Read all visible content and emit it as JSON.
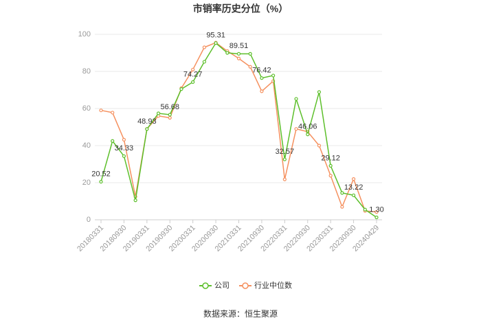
{
  "chart_data": {
    "type": "line",
    "title": "市销率历史分位（%）",
    "categories": [
      "20180331",
      null,
      "20180930",
      null,
      "20190331",
      null,
      "20190930",
      null,
      "20200331",
      null,
      "20200930",
      null,
      "20210331",
      null,
      "20210930",
      null,
      "20220331",
      null,
      "20220930",
      null,
      "20230331",
      null,
      "20230930",
      null,
      "20240429"
    ],
    "series": [
      {
        "name": "公司",
        "color": "#5cbf2a",
        "values": [
          20.52,
          42.5,
          34.33,
          10.5,
          48.93,
          57.4,
          56.68,
          70.5,
          74.27,
          85.2,
          95.31,
          90,
          89.51,
          89.5,
          76.42,
          77.8,
          32.57,
          65.2,
          46.06,
          68.9,
          29.12,
          14.5,
          13.22,
          5.5,
          1.3
        ],
        "value_labels": [
          "20.52",
          null,
          "34.33",
          null,
          "48.93",
          null,
          "56.68",
          null,
          "74.27",
          null,
          "95.31",
          null,
          "89.51",
          null,
          "76.42",
          null,
          "32.57",
          null,
          "46.06",
          null,
          "29.12",
          null,
          "13.22",
          null,
          "1.30"
        ]
      },
      {
        "name": "行业中位数",
        "color": "#f5905e",
        "values": [
          59,
          57.8,
          43.2,
          12.5,
          49,
          56,
          55,
          71,
          81,
          93,
          95.5,
          91,
          87,
          82.5,
          69.3,
          74.8,
          21.8,
          49,
          47.5,
          40,
          23.8,
          7,
          22,
          4.8,
          4.2
        ]
      }
    ],
    "ylim": [
      0,
      100
    ],
    "yticks": [
      0,
      20,
      40,
      60,
      80,
      100
    ],
    "grid": true,
    "legend": "bottom",
    "source": "数据来源：恒生聚源"
  }
}
